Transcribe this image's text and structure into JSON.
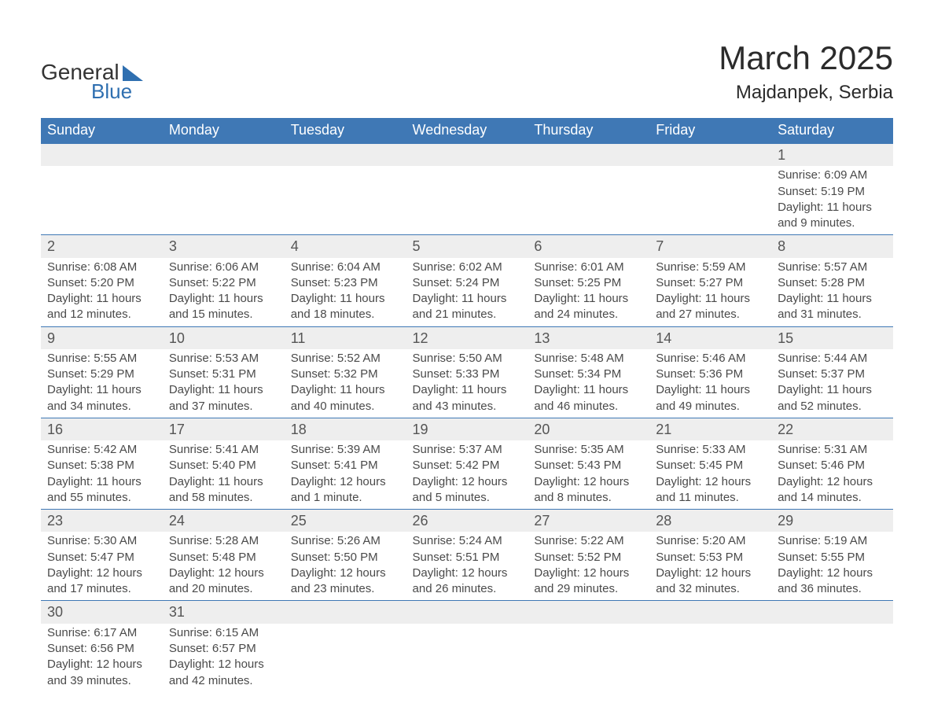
{
  "brand": {
    "name_part1": "General",
    "name_part2": "Blue",
    "accent_color": "#2f6fb0"
  },
  "title": "March 2025",
  "location": "Majdanpek, Serbia",
  "header_bg": "#3f78b5",
  "alt_row_bg": "#eeeeee",
  "text_color": "#4a4a4a",
  "weekdays": [
    "Sunday",
    "Monday",
    "Tuesday",
    "Wednesday",
    "Thursday",
    "Friday",
    "Saturday"
  ],
  "weeks": [
    [
      null,
      null,
      null,
      null,
      null,
      null,
      {
        "n": "1",
        "sr": "6:09 AM",
        "ss": "5:19 PM",
        "dl": "11 hours and 9 minutes."
      }
    ],
    [
      {
        "n": "2",
        "sr": "6:08 AM",
        "ss": "5:20 PM",
        "dl": "11 hours and 12 minutes."
      },
      {
        "n": "3",
        "sr": "6:06 AM",
        "ss": "5:22 PM",
        "dl": "11 hours and 15 minutes."
      },
      {
        "n": "4",
        "sr": "6:04 AM",
        "ss": "5:23 PM",
        "dl": "11 hours and 18 minutes."
      },
      {
        "n": "5",
        "sr": "6:02 AM",
        "ss": "5:24 PM",
        "dl": "11 hours and 21 minutes."
      },
      {
        "n": "6",
        "sr": "6:01 AM",
        "ss": "5:25 PM",
        "dl": "11 hours and 24 minutes."
      },
      {
        "n": "7",
        "sr": "5:59 AM",
        "ss": "5:27 PM",
        "dl": "11 hours and 27 minutes."
      },
      {
        "n": "8",
        "sr": "5:57 AM",
        "ss": "5:28 PM",
        "dl": "11 hours and 31 minutes."
      }
    ],
    [
      {
        "n": "9",
        "sr": "5:55 AM",
        "ss": "5:29 PM",
        "dl": "11 hours and 34 minutes."
      },
      {
        "n": "10",
        "sr": "5:53 AM",
        "ss": "5:31 PM",
        "dl": "11 hours and 37 minutes."
      },
      {
        "n": "11",
        "sr": "5:52 AM",
        "ss": "5:32 PM",
        "dl": "11 hours and 40 minutes."
      },
      {
        "n": "12",
        "sr": "5:50 AM",
        "ss": "5:33 PM",
        "dl": "11 hours and 43 minutes."
      },
      {
        "n": "13",
        "sr": "5:48 AM",
        "ss": "5:34 PM",
        "dl": "11 hours and 46 minutes."
      },
      {
        "n": "14",
        "sr": "5:46 AM",
        "ss": "5:36 PM",
        "dl": "11 hours and 49 minutes."
      },
      {
        "n": "15",
        "sr": "5:44 AM",
        "ss": "5:37 PM",
        "dl": "11 hours and 52 minutes."
      }
    ],
    [
      {
        "n": "16",
        "sr": "5:42 AM",
        "ss": "5:38 PM",
        "dl": "11 hours and 55 minutes."
      },
      {
        "n": "17",
        "sr": "5:41 AM",
        "ss": "5:40 PM",
        "dl": "11 hours and 58 minutes."
      },
      {
        "n": "18",
        "sr": "5:39 AM",
        "ss": "5:41 PM",
        "dl": "12 hours and 1 minute."
      },
      {
        "n": "19",
        "sr": "5:37 AM",
        "ss": "5:42 PM",
        "dl": "12 hours and 5 minutes."
      },
      {
        "n": "20",
        "sr": "5:35 AM",
        "ss": "5:43 PM",
        "dl": "12 hours and 8 minutes."
      },
      {
        "n": "21",
        "sr": "5:33 AM",
        "ss": "5:45 PM",
        "dl": "12 hours and 11 minutes."
      },
      {
        "n": "22",
        "sr": "5:31 AM",
        "ss": "5:46 PM",
        "dl": "12 hours and 14 minutes."
      }
    ],
    [
      {
        "n": "23",
        "sr": "5:30 AM",
        "ss": "5:47 PM",
        "dl": "12 hours and 17 minutes."
      },
      {
        "n": "24",
        "sr": "5:28 AM",
        "ss": "5:48 PM",
        "dl": "12 hours and 20 minutes."
      },
      {
        "n": "25",
        "sr": "5:26 AM",
        "ss": "5:50 PM",
        "dl": "12 hours and 23 minutes."
      },
      {
        "n": "26",
        "sr": "5:24 AM",
        "ss": "5:51 PM",
        "dl": "12 hours and 26 minutes."
      },
      {
        "n": "27",
        "sr": "5:22 AM",
        "ss": "5:52 PM",
        "dl": "12 hours and 29 minutes."
      },
      {
        "n": "28",
        "sr": "5:20 AM",
        "ss": "5:53 PM",
        "dl": "12 hours and 32 minutes."
      },
      {
        "n": "29",
        "sr": "5:19 AM",
        "ss": "5:55 PM",
        "dl": "12 hours and 36 minutes."
      }
    ],
    [
      {
        "n": "30",
        "sr": "6:17 AM",
        "ss": "6:56 PM",
        "dl": "12 hours and 39 minutes."
      },
      {
        "n": "31",
        "sr": "6:15 AM",
        "ss": "6:57 PM",
        "dl": "12 hours and 42 minutes."
      },
      null,
      null,
      null,
      null,
      null
    ]
  ],
  "labels": {
    "sunrise": "Sunrise:",
    "sunset": "Sunset:",
    "daylight": "Daylight:"
  }
}
